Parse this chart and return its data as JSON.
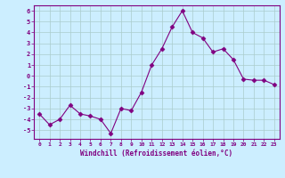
{
  "x": [
    0,
    1,
    2,
    3,
    4,
    5,
    6,
    7,
    8,
    9,
    10,
    11,
    12,
    13,
    14,
    15,
    16,
    17,
    18,
    19,
    20,
    21,
    22,
    23
  ],
  "y": [
    -3.5,
    -4.5,
    -4.0,
    -2.7,
    -3.5,
    -3.7,
    -4.0,
    -5.3,
    -3.0,
    -3.2,
    -1.5,
    1.0,
    2.5,
    4.5,
    6.0,
    4.0,
    3.5,
    2.2,
    2.5,
    1.5,
    -0.3,
    -0.4,
    -0.4,
    -0.8
  ],
  "line_color": "#800080",
  "marker": "D",
  "marker_size": 2.5,
  "background_color": "#cceeff",
  "grid_color": "#aacccc",
  "xlabel": "Windchill (Refroidissement éolien,°C)",
  "xlabel_color": "#800080",
  "tick_color": "#800080",
  "ylim": [
    -5.8,
    6.5
  ],
  "yticks": [
    -5,
    -4,
    -3,
    -2,
    -1,
    0,
    1,
    2,
    3,
    4,
    5,
    6
  ],
  "xticks": [
    0,
    1,
    2,
    3,
    4,
    5,
    6,
    7,
    8,
    9,
    10,
    11,
    12,
    13,
    14,
    15,
    16,
    17,
    18,
    19,
    20,
    21,
    22,
    23
  ],
  "xtick_labels": [
    "0",
    "1",
    "2",
    "3",
    "4",
    "5",
    "6",
    "7",
    "8",
    "9",
    "10",
    "11",
    "12",
    "13",
    "14",
    "15",
    "16",
    "17",
    "18",
    "19",
    "20",
    "21",
    "22",
    "23"
  ]
}
